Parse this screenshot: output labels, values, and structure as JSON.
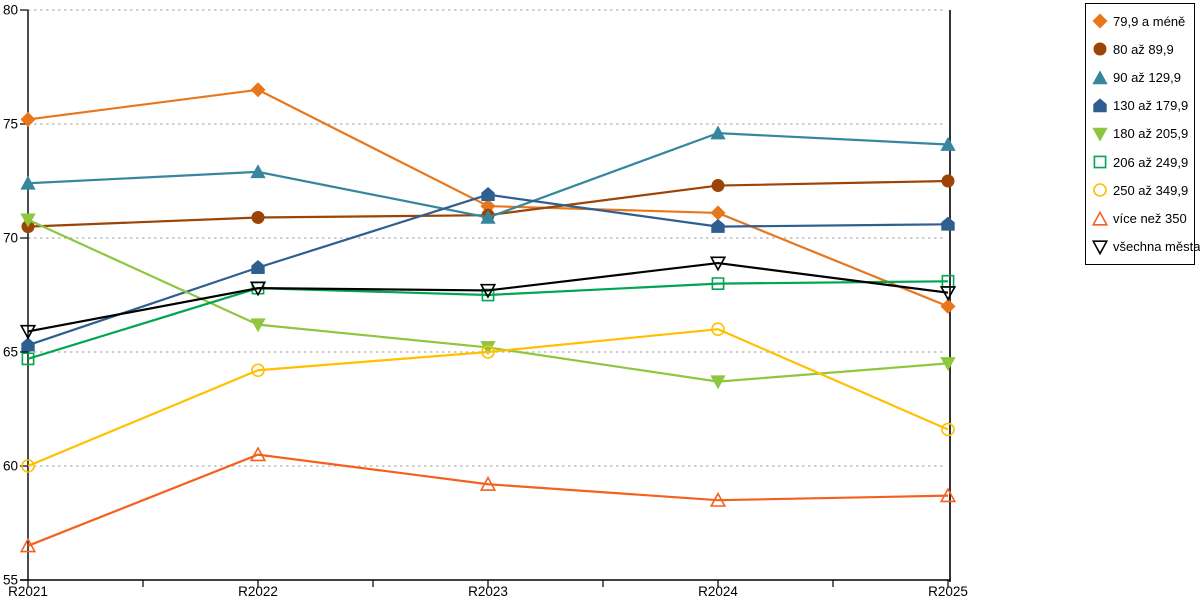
{
  "chart_data": {
    "type": "line",
    "title": "",
    "xlabel": "",
    "ylabel": "",
    "categories": [
      "R2021",
      "R2022",
      "R2023",
      "R2024",
      "R2025"
    ],
    "series": [
      {
        "name": "79,9 a méně",
        "marker": "diamond",
        "filled": true,
        "color": "#E8761B",
        "values": [
          75.2,
          76.5,
          71.4,
          71.1,
          67.0
        ]
      },
      {
        "name": "80 až 89,9",
        "marker": "circle",
        "filled": true,
        "color": "#9C4306",
        "values": [
          70.5,
          70.9,
          71.0,
          72.3,
          72.5
        ]
      },
      {
        "name": "90 až 129,9",
        "marker": "triangle-up",
        "filled": true,
        "color": "#36869E",
        "values": [
          72.4,
          72.9,
          70.9,
          74.6,
          74.1
        ]
      },
      {
        "name": "130 až 179,9",
        "marker": "pentagon",
        "filled": true,
        "color": "#2F5F8F",
        "values": [
          65.3,
          68.7,
          71.9,
          70.5,
          70.6
        ]
      },
      {
        "name": "180 až 205,9",
        "marker": "triangle-down",
        "filled": true,
        "color": "#8DC63F",
        "values": [
          70.8,
          66.2,
          65.2,
          63.7,
          64.5
        ]
      },
      {
        "name": "206 až 249,9",
        "marker": "square",
        "filled": false,
        "color": "#00A651",
        "values": [
          64.7,
          67.8,
          67.5,
          68.0,
          68.1
        ]
      },
      {
        "name": "250 až 349,9",
        "marker": "circle",
        "filled": false,
        "color": "#FFC000",
        "values": [
          60.0,
          64.2,
          65.0,
          66.0,
          61.6
        ]
      },
      {
        "name": "více než 350",
        "marker": "triangle-up",
        "filled": false,
        "color": "#F4601D",
        "values": [
          56.5,
          60.5,
          59.2,
          58.5,
          58.7
        ]
      },
      {
        "name": "všechna města",
        "marker": "triangle-down",
        "filled": false,
        "color": "#000000",
        "values": [
          65.9,
          67.8,
          67.7,
          68.9,
          67.6
        ]
      }
    ],
    "ylim": [
      55,
      80
    ],
    "y_tick_step": 5,
    "y_tick_labels": [
      "55",
      "60",
      "65",
      "70",
      "75",
      "80"
    ],
    "grid": "horizontal-dotted",
    "gridline_color": "#B3B3B3",
    "axis_color": "#000000",
    "legend_position": "top-right"
  }
}
